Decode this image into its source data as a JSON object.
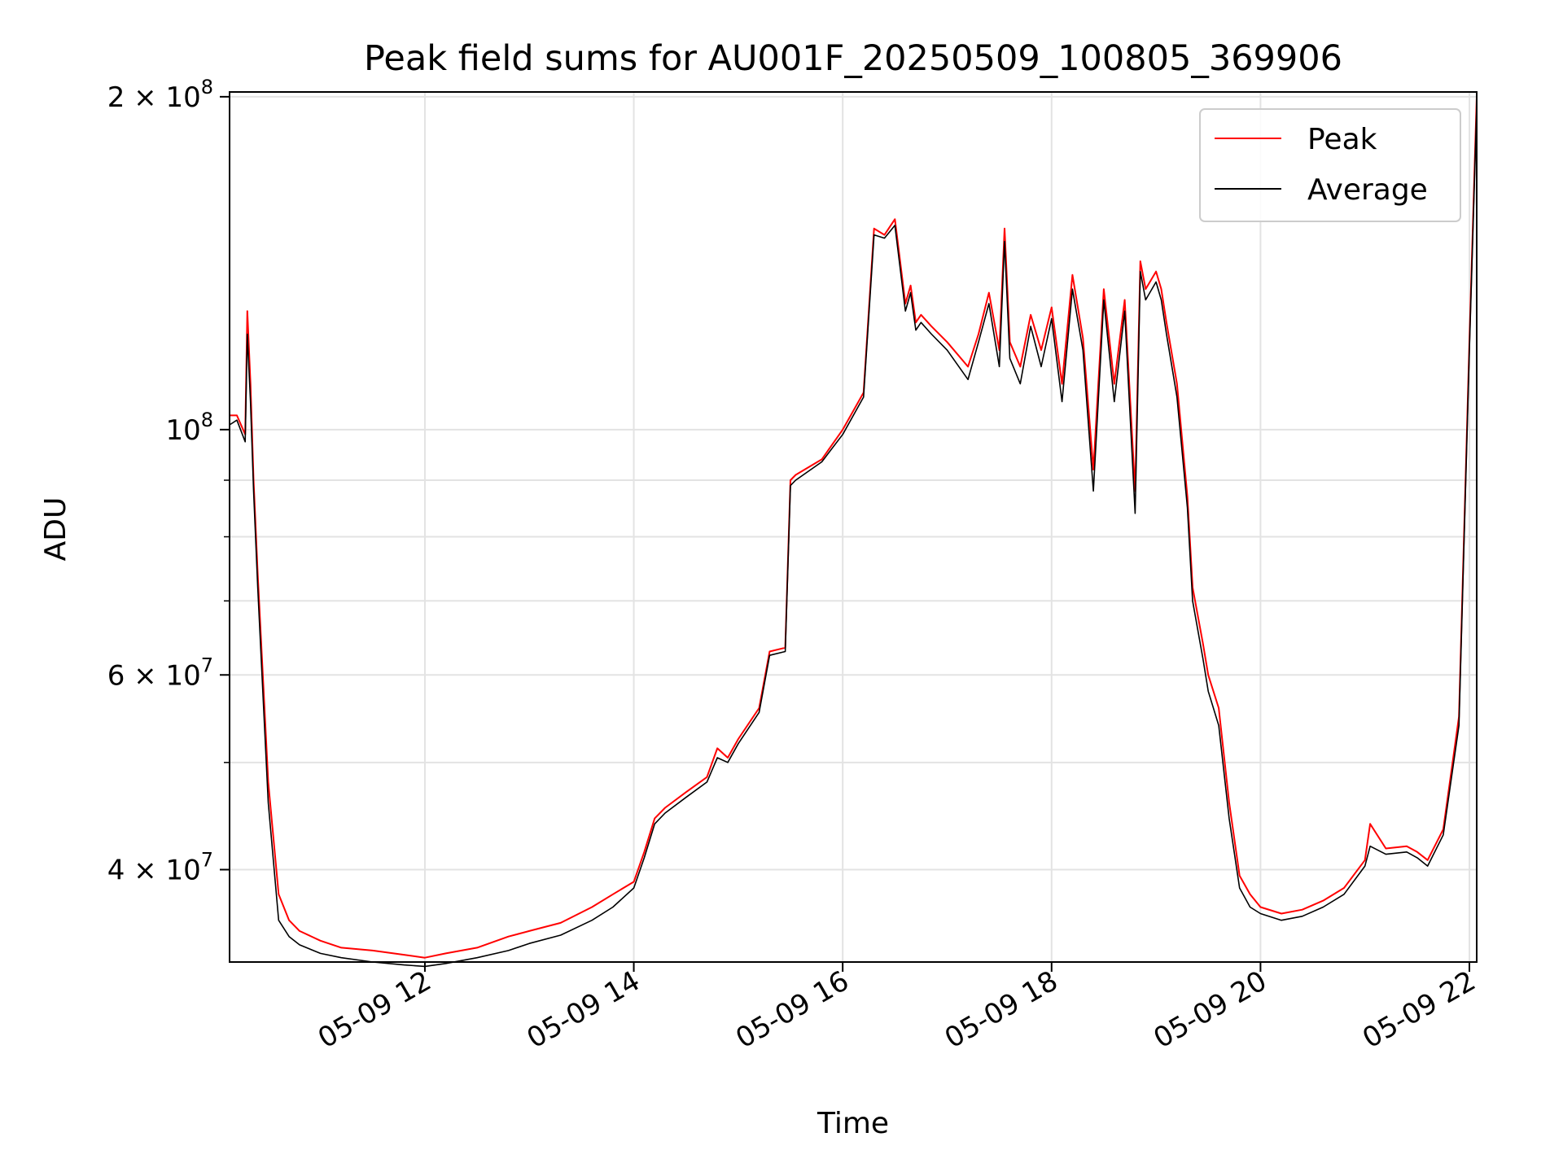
{
  "chart_data": {
    "type": "line",
    "title": "Peak field sums for AU001F_20250509_100805_369906",
    "xlabel": "Time",
    "ylabel": "ADU",
    "x_axis": {
      "unit": "hours on 2025-05-09",
      "range": [
        10.13,
        22.07
      ]
    },
    "y_axis": {
      "scale": "log",
      "range": [
        33000000,
        202000000
      ]
    },
    "grid": true,
    "legend": {
      "placement": "top-right"
    },
    "x_ticks": [
      {
        "value": 12,
        "label": "05-09 12"
      },
      {
        "value": 14,
        "label": "05-09 14"
      },
      {
        "value": 16,
        "label": "05-09 16"
      },
      {
        "value": 18,
        "label": "05-09 18"
      },
      {
        "value": 20,
        "label": "05-09 20"
      },
      {
        "value": 22,
        "label": "05-09 22"
      }
    ],
    "y_major_ticks": [
      {
        "value": 40000000,
        "mantissa": "4",
        "base": "10",
        "exp": "7"
      },
      {
        "value": 60000000,
        "mantissa": "6",
        "base": "10",
        "exp": "7"
      },
      {
        "value": 100000000,
        "mantissa": "",
        "base": "10",
        "exp": "8"
      },
      {
        "value": 200000000,
        "mantissa": "2",
        "base": "10",
        "exp": "8"
      }
    ],
    "y_minor_ticks": [
      50000000,
      70000000,
      80000000,
      90000000
    ],
    "series": [
      {
        "name": "Peak",
        "color": "#ff0000",
        "x": [
          10.13,
          10.2,
          10.28,
          10.3,
          10.33,
          10.36,
          10.4,
          10.5,
          10.6,
          10.7,
          10.8,
          11.0,
          11.2,
          11.5,
          11.8,
          12.0,
          12.2,
          12.5,
          12.8,
          13.0,
          13.3,
          13.6,
          13.8,
          14.0,
          14.1,
          14.2,
          14.3,
          14.5,
          14.7,
          14.8,
          14.9,
          15.0,
          15.2,
          15.3,
          15.45,
          15.5,
          15.55,
          15.8,
          16.0,
          16.2,
          16.3,
          16.4,
          16.5,
          16.6,
          16.65,
          16.7,
          16.75,
          16.85,
          17.0,
          17.2,
          17.3,
          17.4,
          17.5,
          17.55,
          17.6,
          17.7,
          17.8,
          17.9,
          18.0,
          18.1,
          18.2,
          18.3,
          18.4,
          18.5,
          18.6,
          18.7,
          18.8,
          18.85,
          18.9,
          19.0,
          19.05,
          19.1,
          19.2,
          19.3,
          19.35,
          19.45,
          19.5,
          19.6,
          19.7,
          19.8,
          19.9,
          20.0,
          20.2,
          20.4,
          20.6,
          20.8,
          21.0,
          21.05,
          21.2,
          21.4,
          21.5,
          21.6,
          21.75,
          21.9,
          22.0,
          22.07
        ],
        "y": [
          103000000,
          103000000,
          99000000,
          128000000,
          110000000,
          90000000,
          74000000,
          48000000,
          38000000,
          36000000,
          35200000,
          34500000,
          34000000,
          33800000,
          33500000,
          33300000,
          33600000,
          34000000,
          34800000,
          35200000,
          35800000,
          37000000,
          38000000,
          39000000,
          41500000,
          44500000,
          45500000,
          47000000,
          48500000,
          51500000,
          50500000,
          52500000,
          56000000,
          63000000,
          63500000,
          90000000,
          91000000,
          94000000,
          100000000,
          108000000,
          152000000,
          150000000,
          155000000,
          130000000,
          135000000,
          125000000,
          127000000,
          124000000,
          120000000,
          114000000,
          122000000,
          133000000,
          118000000,
          152000000,
          120000000,
          114000000,
          127000000,
          118000000,
          129000000,
          110000000,
          138000000,
          121000000,
          92000000,
          134000000,
          110000000,
          131000000,
          88000000,
          142000000,
          134000000,
          139000000,
          134000000,
          125000000,
          110000000,
          87000000,
          72000000,
          64000000,
          60000000,
          56000000,
          46000000,
          39500000,
          38000000,
          37000000,
          36500000,
          36800000,
          37500000,
          38500000,
          40800000,
          44000000,
          41800000,
          42000000,
          41500000,
          40800000,
          43500000,
          55000000,
          120000000,
          200000000
        ]
      },
      {
        "name": "Average",
        "color": "#000000",
        "x": [
          10.13,
          10.2,
          10.28,
          10.3,
          10.33,
          10.36,
          10.4,
          10.5,
          10.6,
          10.7,
          10.8,
          11.0,
          11.2,
          11.5,
          11.8,
          12.0,
          12.2,
          12.5,
          12.8,
          13.0,
          13.3,
          13.6,
          13.8,
          14.0,
          14.1,
          14.2,
          14.3,
          14.5,
          14.7,
          14.8,
          14.9,
          15.0,
          15.2,
          15.3,
          15.45,
          15.5,
          15.55,
          15.8,
          16.0,
          16.2,
          16.3,
          16.4,
          16.5,
          16.6,
          16.65,
          16.7,
          16.75,
          16.85,
          17.0,
          17.2,
          17.3,
          17.4,
          17.5,
          17.55,
          17.6,
          17.7,
          17.8,
          17.9,
          18.0,
          18.1,
          18.2,
          18.3,
          18.4,
          18.5,
          18.6,
          18.7,
          18.8,
          18.85,
          18.9,
          19.0,
          19.05,
          19.1,
          19.2,
          19.3,
          19.35,
          19.45,
          19.5,
          19.6,
          19.7,
          19.8,
          19.9,
          20.0,
          20.2,
          20.4,
          20.6,
          20.8,
          21.0,
          21.05,
          21.2,
          21.4,
          21.5,
          21.6,
          21.75,
          21.9,
          22.0,
          22.07
        ],
        "y": [
          101000000,
          102000000,
          97500000,
          122000000,
          106000000,
          88000000,
          72000000,
          46000000,
          36000000,
          34800000,
          34200000,
          33600000,
          33300000,
          33000000,
          32800000,
          32700000,
          32900000,
          33300000,
          33800000,
          34300000,
          34900000,
          36000000,
          37000000,
          38500000,
          41000000,
          44000000,
          45000000,
          46500000,
          48000000,
          50500000,
          50000000,
          52000000,
          55500000,
          62500000,
          63000000,
          89000000,
          90000000,
          93500000,
          99000000,
          107000000,
          150000000,
          149000000,
          153000000,
          128000000,
          133000000,
          123000000,
          125000000,
          122000000,
          118000000,
          111000000,
          120000000,
          130000000,
          114000000,
          148000000,
          116000000,
          110000000,
          124000000,
          114000000,
          126000000,
          106000000,
          134000000,
          118000000,
          88000000,
          131000000,
          106000000,
          128000000,
          84000000,
          139000000,
          131000000,
          136000000,
          131000000,
          122000000,
          107000000,
          85000000,
          70000000,
          62000000,
          58000000,
          54000000,
          44500000,
          38500000,
          37000000,
          36500000,
          36000000,
          36300000,
          37000000,
          38000000,
          40300000,
          42000000,
          41300000,
          41500000,
          41000000,
          40300000,
          43000000,
          54000000,
          118000000,
          196000000
        ]
      }
    ]
  }
}
